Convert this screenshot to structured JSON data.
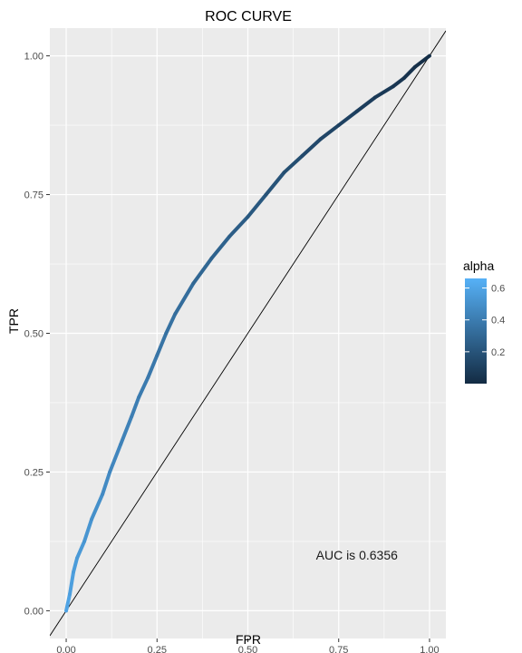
{
  "chart_data": {
    "type": "line",
    "title": "ROC CURVE",
    "xlabel": "FPR",
    "ylabel": "TPR",
    "xlim": [
      -0.045,
      1.045
    ],
    "ylim": [
      -0.05,
      1.05
    ],
    "x_ticks": [
      0.0,
      0.25,
      0.5,
      0.75,
      1.0
    ],
    "x_tick_labels": [
      "0.00",
      "0.25",
      "0.50",
      "0.75",
      "1.00"
    ],
    "y_ticks": [
      0.0,
      0.25,
      0.5,
      0.75,
      1.0
    ],
    "y_tick_labels": [
      "0.00",
      "0.25",
      "0.50",
      "0.75",
      "1.00"
    ],
    "grid": true,
    "panel_background": "#EBEBEB",
    "series": [
      {
        "color_scale": "alpha",
        "points": [
          {
            "x": 0.0,
            "y": 0.0,
            "alpha": 0.6
          },
          {
            "x": 0.01,
            "y": 0.03,
            "alpha": 0.58
          },
          {
            "x": 0.02,
            "y": 0.07,
            "alpha": 0.56
          },
          {
            "x": 0.03,
            "y": 0.095,
            "alpha": 0.55
          },
          {
            "x": 0.05,
            "y": 0.125,
            "alpha": 0.53
          },
          {
            "x": 0.07,
            "y": 0.165,
            "alpha": 0.51
          },
          {
            "x": 0.1,
            "y": 0.21,
            "alpha": 0.48
          },
          {
            "x": 0.12,
            "y": 0.25,
            "alpha": 0.46
          },
          {
            "x": 0.15,
            "y": 0.3,
            "alpha": 0.44
          },
          {
            "x": 0.18,
            "y": 0.35,
            "alpha": 0.42
          },
          {
            "x": 0.2,
            "y": 0.385,
            "alpha": 0.4
          },
          {
            "x": 0.225,
            "y": 0.42,
            "alpha": 0.39
          },
          {
            "x": 0.25,
            "y": 0.46,
            "alpha": 0.37
          },
          {
            "x": 0.275,
            "y": 0.5,
            "alpha": 0.35
          },
          {
            "x": 0.3,
            "y": 0.535,
            "alpha": 0.34
          },
          {
            "x": 0.35,
            "y": 0.59,
            "alpha": 0.31
          },
          {
            "x": 0.4,
            "y": 0.635,
            "alpha": 0.28
          },
          {
            "x": 0.45,
            "y": 0.675,
            "alpha": 0.26
          },
          {
            "x": 0.5,
            "y": 0.71,
            "alpha": 0.23
          },
          {
            "x": 0.55,
            "y": 0.75,
            "alpha": 0.21
          },
          {
            "x": 0.6,
            "y": 0.79,
            "alpha": 0.18
          },
          {
            "x": 0.65,
            "y": 0.82,
            "alpha": 0.16
          },
          {
            "x": 0.7,
            "y": 0.85,
            "alpha": 0.14
          },
          {
            "x": 0.75,
            "y": 0.875,
            "alpha": 0.12
          },
          {
            "x": 0.8,
            "y": 0.9,
            "alpha": 0.1
          },
          {
            "x": 0.85,
            "y": 0.925,
            "alpha": 0.08
          },
          {
            "x": 0.9,
            "y": 0.945,
            "alpha": 0.06
          },
          {
            "x": 0.93,
            "y": 0.96,
            "alpha": 0.04
          },
          {
            "x": 0.96,
            "y": 0.98,
            "alpha": 0.03
          },
          {
            "x": 1.0,
            "y": 1.0,
            "alpha": 0.01
          }
        ]
      }
    ],
    "reference_line": {
      "intercept": 0,
      "slope": 1,
      "color": "#000000"
    },
    "annotation": {
      "text": "AUC is 0.6356",
      "x": 0.8,
      "y": 0.1
    },
    "legend": {
      "title": "alpha",
      "placement": "right",
      "type": "colorbar",
      "range": [
        0,
        0.66
      ],
      "tick_values": [
        0.2,
        0.4,
        0.6
      ],
      "tick_labels": [
        "0.2",
        "0.4",
        "0.6"
      ],
      "color_low": "#132B43",
      "color_high": "#56B1F7"
    }
  }
}
